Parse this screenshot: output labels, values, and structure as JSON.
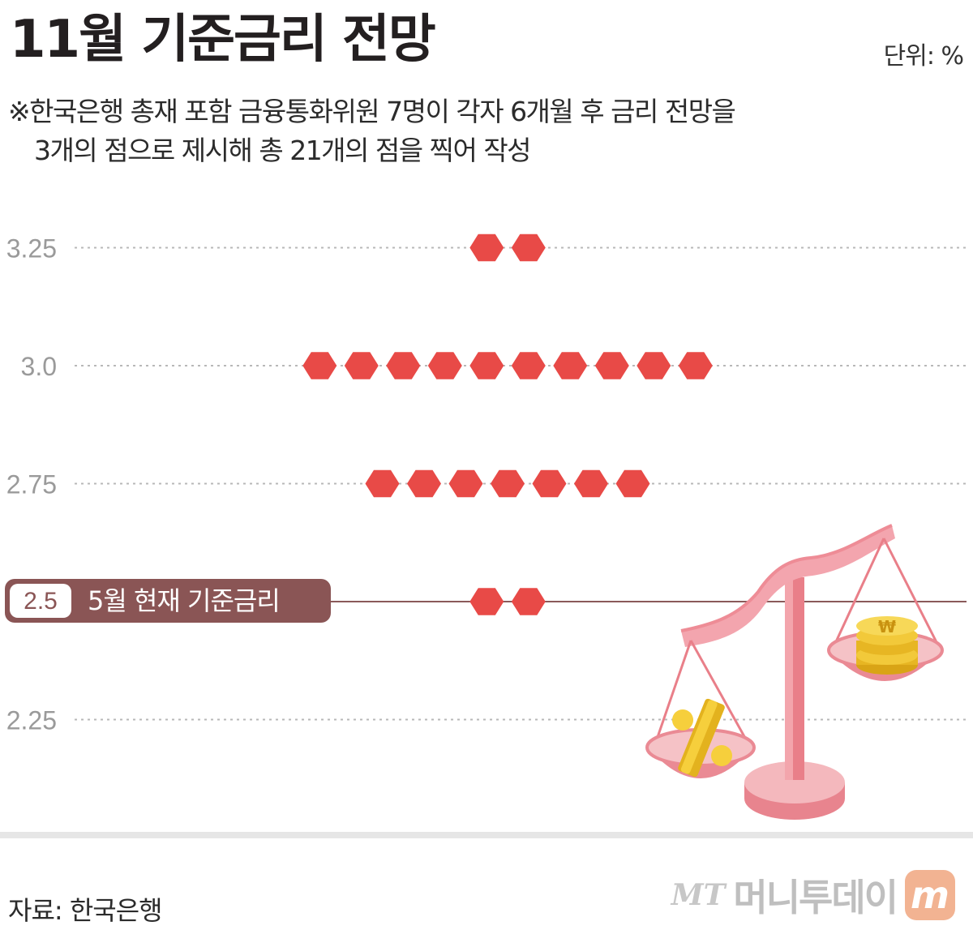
{
  "title": "11월 기준금리 전망",
  "unit": "단위: %",
  "note": {
    "line1": "※한국은행 총재 포함 금융통화위원 7명이 각자 6개월 후 금리 전망을",
    "line2": "3개의 점으로 제시해 총 21개의 점을 찍어 작성"
  },
  "source": "자료: 한국은행",
  "logo": {
    "mt": "MT",
    "name": "머니투데이",
    "badge": "m"
  },
  "colors": {
    "dot": "#e84a47",
    "grid": "#b8b8b8",
    "current_line": "#8a5a5a",
    "label_bg": "#8a5555"
  },
  "chart_data": {
    "type": "scatter",
    "ylabel": "",
    "y_ticks": [
      "3.25",
      "3.0",
      "2.75",
      "2.5",
      "2.25"
    ],
    "current_rate": {
      "value": 2.5,
      "label": "5월 현재 기준금리"
    },
    "series": [
      {
        "y": 3.25,
        "count": 2
      },
      {
        "y": 3.0,
        "count": 10
      },
      {
        "y": 2.75,
        "count": 7
      },
      {
        "y": 2.5,
        "count": 2
      }
    ]
  }
}
